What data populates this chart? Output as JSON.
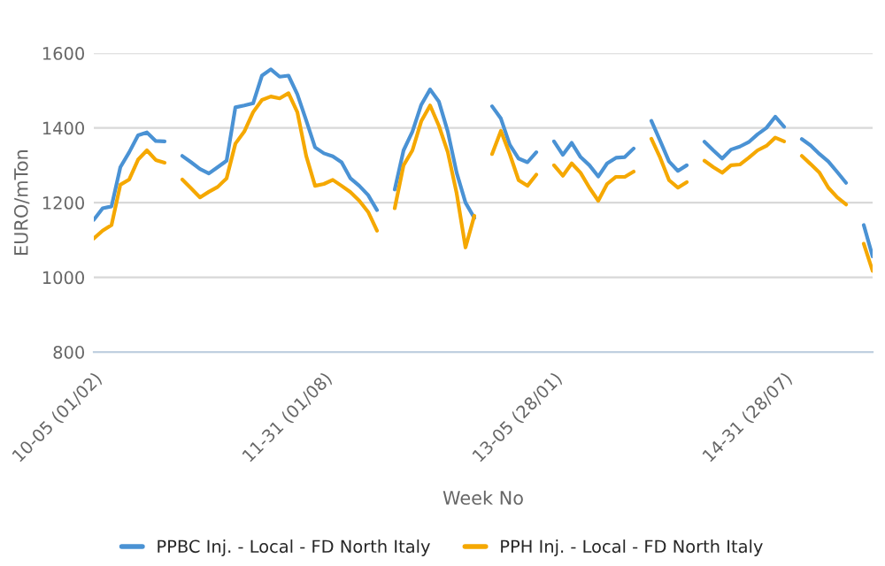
{
  "chart_data": {
    "type": "line",
    "xlabel": "Week No",
    "ylabel": "EURO/mTon",
    "categories": [
      "10-05 (01/02)",
      null,
      null,
      null,
      null,
      null,
      null,
      null,
      null,
      null,
      null,
      null,
      null,
      null,
      null,
      null,
      null,
      null,
      null,
      null,
      null,
      null,
      null,
      null,
      null,
      null,
      "11-31 (01/08)",
      null,
      null,
      null,
      null,
      null,
      null,
      null,
      null,
      null,
      null,
      null,
      null,
      null,
      null,
      null,
      null,
      null,
      null,
      null,
      null,
      null,
      null,
      null,
      null,
      null,
      "13-05 (28/01)",
      null,
      null,
      null,
      null,
      null,
      null,
      null,
      null,
      null,
      null,
      null,
      null,
      null,
      null,
      null,
      null,
      null,
      null,
      null,
      null,
      null,
      null,
      null,
      null,
      null,
      "14-31 (28/07)",
      null,
      null,
      null,
      null,
      null,
      null,
      null,
      null,
      null,
      null
    ],
    "ylim": [
      800,
      1600
    ],
    "yticks": [
      800,
      1000,
      1200,
      1400,
      1600
    ],
    "grid": "y",
    "legend": "bottom",
    "marker": "none",
    "line_style": "solid",
    "series": [
      {
        "name": "PPBC Inj. - Local - FD North Italy",
        "color": "#4a92d4",
        "values": [
          1154,
          1185,
          1190,
          1295,
          1335,
          1380,
          1388,
          1365,
          1364,
          null,
          1325,
          1308,
          1290,
          1278,
          1295,
          1312,
          1455,
          1460,
          1466,
          1540,
          1557,
          1537,
          1540,
          1490,
          1420,
          1348,
          1332,
          1324,
          1308,
          1265,
          1245,
          1220,
          1180,
          null,
          1235,
          1340,
          1390,
          1462,
          1503,
          1470,
          1390,
          1280,
          1200,
          1159,
          null,
          1458,
          1425,
          1355,
          1318,
          1308,
          1335,
          null,
          1364,
          1328,
          1360,
          1322,
          1300,
          1270,
          1305,
          1320,
          1322,
          1345,
          null,
          1419,
          1365,
          1310,
          1285,
          1300,
          null,
          1363,
          1340,
          1318,
          1342,
          1350,
          1362,
          1383,
          1400,
          1430,
          1403,
          null,
          1370,
          1353,
          1330,
          1310,
          1282,
          1253,
          null,
          1140,
          1056
        ]
      },
      {
        "name": "PPH Inj. - Local - FD North Italy",
        "color": "#f5a800",
        "values": [
          1104,
          1125,
          1140,
          1248,
          1262,
          1315,
          1340,
          1314,
          1307,
          null,
          1262,
          1238,
          1214,
          1229,
          1242,
          1265,
          1358,
          1390,
          1442,
          1475,
          1484,
          1479,
          1493,
          1442,
          1325,
          1245,
          1250,
          1261,
          1245,
          1228,
          1205,
          1175,
          1125,
          null,
          1185,
          1300,
          1340,
          1418,
          1460,
          1405,
          1335,
          1225,
          1080,
          1165,
          null,
          1330,
          1392,
          1330,
          1260,
          1245,
          1275,
          null,
          1300,
          1272,
          1305,
          1280,
          1240,
          1205,
          1250,
          1269,
          1269,
          1283,
          null,
          1371,
          1320,
          1260,
          1240,
          1255,
          null,
          1312,
          1295,
          1280,
          1300,
          1302,
          1320,
          1340,
          1352,
          1374,
          1364,
          null,
          1325,
          1303,
          1280,
          1240,
          1214,
          1195,
          null,
          1090,
          1017
        ]
      }
    ]
  }
}
